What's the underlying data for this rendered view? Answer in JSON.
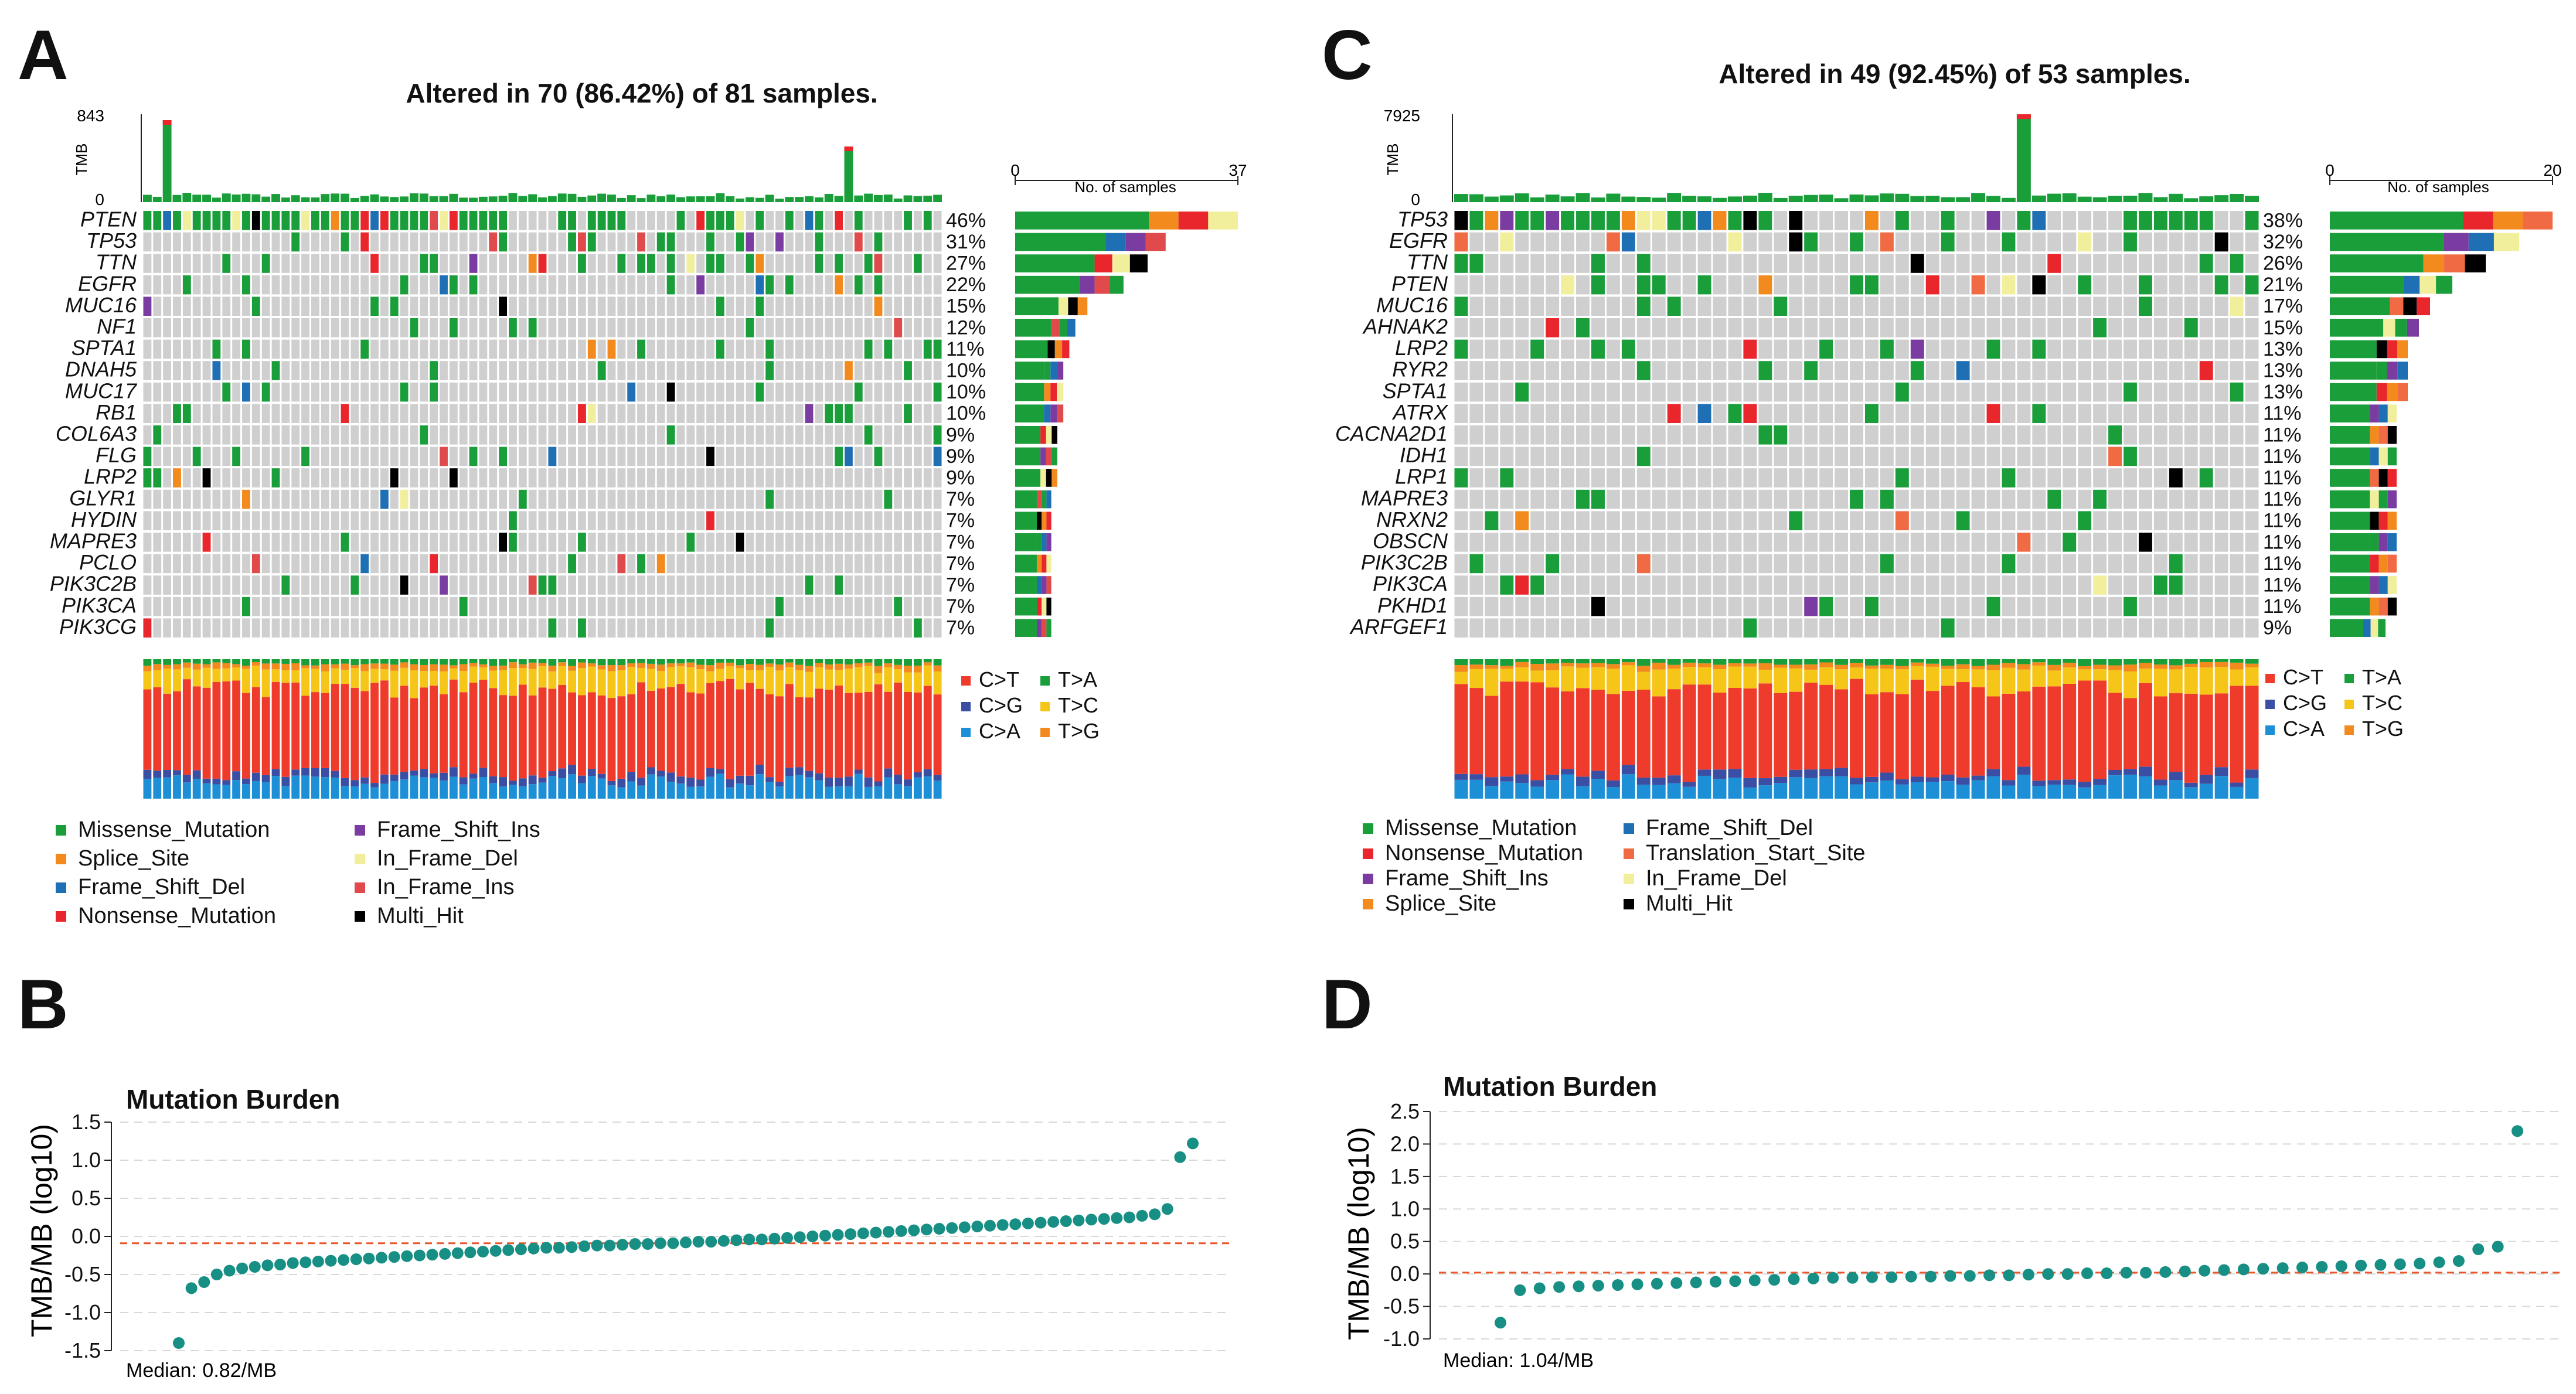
{
  "panels": {
    "A": {
      "letter": "A",
      "title": "Altered in 70 (86.42%) of 81 samples.",
      "n_samples": 81,
      "tmb_axis": {
        "label": "TMB",
        "max": "843",
        "min": "0"
      },
      "samples_axis": {
        "label": "No. of samples",
        "min": "0",
        "max": "37"
      },
      "genes": [
        "PTEN",
        "TP53",
        "TTN",
        "EGFR",
        "MUC16",
        "NF1",
        "SPTA1",
        "DNAH5",
        "MUC17",
        "RB1",
        "COL6A3",
        "FLG",
        "LRP2",
        "GLYR1",
        "HYDIN",
        "MAPRE3",
        "PCLO",
        "PIK3C2B",
        "PIK3CA",
        "PIK3CG"
      ],
      "percents": [
        "46%",
        "31%",
        "27%",
        "22%",
        "15%",
        "12%",
        "11%",
        "10%",
        "10%",
        "10%",
        "9%",
        "9%",
        "9%",
        "7%",
        "7%",
        "7%",
        "7%",
        "7%",
        "7%",
        "7%"
      ],
      "legend": [
        "Missense_Mutation",
        "Splice_Site",
        "Frame_Shift_Del",
        "Nonsense_Mutation",
        "Frame_Shift_Ins",
        "In_Frame_Del",
        "In_Frame_Ins",
        "Multi_Hit"
      ],
      "titv_legend": [
        "C>T",
        "C>G",
        "C>A",
        "T>A",
        "T>C",
        "T>G"
      ]
    },
    "C": {
      "letter": "C",
      "title": "Altered in 49 (92.45%) of 53 samples.",
      "n_samples": 53,
      "tmb_axis": {
        "label": "TMB",
        "max": "7925",
        "min": "0"
      },
      "samples_axis": {
        "label": "No. of samples",
        "min": "0",
        "max": "20"
      },
      "genes": [
        "TP53",
        "EGFR",
        "TTN",
        "PTEN",
        "MUC16",
        "AHNAK2",
        "LRP2",
        "RYR2",
        "SPTA1",
        "ATRX",
        "CACNA2D1",
        "IDH1",
        "LRP1",
        "MAPRE3",
        "NRXN2",
        "OBSCN",
        "PIK3C2B",
        "PIK3CA",
        "PKHD1",
        "ARFGEF1"
      ],
      "percents": [
        "38%",
        "32%",
        "26%",
        "21%",
        "17%",
        "15%",
        "13%",
        "13%",
        "13%",
        "11%",
        "11%",
        "11%",
        "11%",
        "11%",
        "11%",
        "11%",
        "11%",
        "11%",
        "11%",
        "9%"
      ],
      "legend": [
        "Missense_Mutation",
        "Nonsense_Mutation",
        "Frame_Shift_Ins",
        "Splice_Site",
        "Frame_Shift_Del",
        "Translation_Start_Site",
        "In_Frame_Del",
        "Multi_Hit"
      ],
      "titv_legend": [
        "C>T",
        "C>G",
        "C>A",
        "T>A",
        "T>C",
        "T>G"
      ]
    },
    "B": {
      "letter": "B",
      "title": "Mutation Burden",
      "ylabel": "TMB/MB (log10)",
      "ticks": [
        "1.5",
        "1.0",
        "0.5",
        "0.0",
        "-0.5",
        "-1.0",
        "-1.5"
      ],
      "median_label": "Median: 0.82/MB"
    },
    "D": {
      "letter": "D",
      "title": "Mutation Burden",
      "ylabel": "TMB/MB (log10)",
      "ticks": [
        "2.5",
        "2.0",
        "1.5",
        "1.0",
        "0.5",
        "0.0",
        "-0.5",
        "-1.0"
      ],
      "median_label": "Median: 1.04/MB"
    }
  },
  "colors": {
    "missense": "#1a9e3a",
    "splice": "#f28a1e",
    "fs_del": "#1f6fb4",
    "nonsense": "#e8262b",
    "fs_ins": "#7a3ca0",
    "if_del": "#f2ef9c",
    "if_ins": "#e04a4a",
    "multi": "#000000",
    "tss": "#f06a43",
    "bg_cell": "#cfcfcf",
    "CtoT": "#ef3b2c",
    "CtoG": "#3a4fa3",
    "CtoA": "#1d8fd6",
    "TtoA": "#1a9e3a",
    "TtoC": "#f5c518",
    "TtoG": "#f28a1e",
    "dot": "#178f84",
    "median_line": "#e8562a"
  },
  "chart_data": [
    {
      "type": "heatmap",
      "panel": "A",
      "title": "Altered in 70 (86.42%) of 81 samples.",
      "rows": [
        "PTEN",
        "TP53",
        "TTN",
        "EGFR",
        "MUC16",
        "NF1",
        "SPTA1",
        "DNAH5",
        "MUC17",
        "RB1",
        "COL6A3",
        "FLG",
        "LRP2",
        "GLYR1",
        "HYDIN",
        "MAPRE3",
        "PCLO",
        "PIK3C2B",
        "PIK3CA",
        "PIK3CG"
      ],
      "row_percent": [
        46,
        31,
        27,
        22,
        15,
        12,
        11,
        10,
        10,
        10,
        9,
        9,
        9,
        7,
        7,
        7,
        7,
        7,
        7,
        7
      ],
      "row_counts": [
        37,
        25,
        22,
        18,
        12,
        10,
        9,
        8,
        8,
        8,
        7,
        7,
        7,
        6,
        6,
        6,
        6,
        6,
        6,
        6
      ],
      "tmb_max": 843,
      "samples_max": 37
    },
    {
      "type": "heatmap",
      "panel": "C",
      "title": "Altered in 49 (92.45%) of 53 samples.",
      "rows": [
        "TP53",
        "EGFR",
        "TTN",
        "PTEN",
        "MUC16",
        "AHNAK2",
        "LRP2",
        "RYR2",
        "SPTA1",
        "ATRX",
        "CACNA2D1",
        "IDH1",
        "LRP1",
        "MAPRE3",
        "NRXN2",
        "OBSCN",
        "PIK3C2B",
        "PIK3CA",
        "PKHD1",
        "ARFGEF1"
      ],
      "row_percent": [
        38,
        32,
        26,
        21,
        17,
        15,
        13,
        13,
        13,
        11,
        11,
        11,
        11,
        11,
        11,
        11,
        11,
        11,
        11,
        9
      ],
      "row_counts": [
        20,
        17,
        14,
        11,
        9,
        8,
        7,
        7,
        7,
        6,
        6,
        6,
        6,
        6,
        6,
        6,
        6,
        6,
        6,
        5
      ],
      "tmb_max": 7925,
      "samples_max": 20
    },
    {
      "type": "scatter",
      "panel": "B",
      "title": "Mutation Burden",
      "ylabel": "TMB/MB (log10)",
      "ylim": [
        -1.5,
        1.5
      ],
      "median_log10": -0.09,
      "median_label": "Median: 0.82/MB",
      "y": [
        -1.4,
        -0.68,
        -0.6,
        -0.5,
        -0.45,
        -0.42,
        -0.4,
        -0.38,
        -0.37,
        -0.35,
        -0.34,
        -0.33,
        -0.32,
        -0.31,
        -0.3,
        -0.29,
        -0.28,
        -0.27,
        -0.26,
        -0.25,
        -0.24,
        -0.23,
        -0.22,
        -0.21,
        -0.2,
        -0.19,
        -0.18,
        -0.17,
        -0.16,
        -0.15,
        -0.15,
        -0.14,
        -0.13,
        -0.12,
        -0.12,
        -0.11,
        -0.1,
        -0.1,
        -0.09,
        -0.09,
        -0.08,
        -0.07,
        -0.07,
        -0.06,
        -0.05,
        -0.04,
        -0.04,
        -0.03,
        -0.02,
        -0.01,
        0.0,
        0.01,
        0.02,
        0.03,
        0.04,
        0.05,
        0.06,
        0.07,
        0.08,
        0.09,
        0.1,
        0.11,
        0.12,
        0.13,
        0.14,
        0.15,
        0.16,
        0.17,
        0.18,
        0.19,
        0.2,
        0.21,
        0.22,
        0.23,
        0.24,
        0.25,
        0.27,
        0.29,
        0.36,
        1.04,
        1.22
      ]
    },
    {
      "type": "scatter",
      "panel": "D",
      "title": "Mutation Burden",
      "ylabel": "TMB/MB (log10)",
      "ylim": [
        -1.0,
        2.5
      ],
      "median_log10": 0.02,
      "median_label": "Median: 1.04/MB",
      "y": [
        -0.75,
        -0.25,
        -0.22,
        -0.2,
        -0.19,
        -0.18,
        -0.17,
        -0.16,
        -0.15,
        -0.14,
        -0.13,
        -0.12,
        -0.11,
        -0.1,
        -0.09,
        -0.08,
        -0.07,
        -0.06,
        -0.06,
        -0.05,
        -0.05,
        -0.04,
        -0.04,
        -0.03,
        -0.03,
        -0.02,
        -0.02,
        -0.01,
        0.0,
        0.0,
        0.01,
        0.01,
        0.02,
        0.02,
        0.03,
        0.04,
        0.05,
        0.06,
        0.07,
        0.08,
        0.09,
        0.1,
        0.11,
        0.12,
        0.13,
        0.14,
        0.15,
        0.16,
        0.18,
        0.2,
        0.38,
        0.42,
        2.2
      ]
    }
  ]
}
